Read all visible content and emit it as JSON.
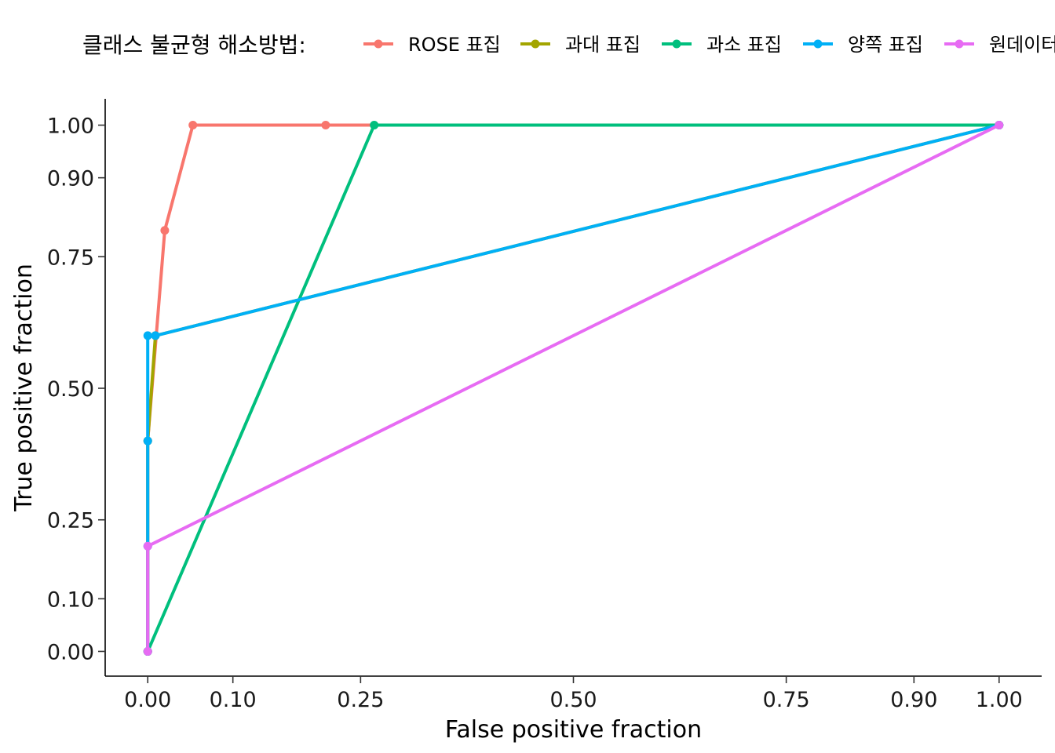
{
  "chart_data": {
    "type": "line",
    "title": "",
    "xlabel": "False positive fraction",
    "ylabel": "True positive fraction",
    "xlim": [
      -0.05,
      1.05
    ],
    "ylim": [
      -0.047,
      1.05
    ],
    "xticks": [
      0.0,
      0.1,
      0.25,
      0.5,
      0.75,
      0.9,
      1.0
    ],
    "yticks": [
      0.0,
      0.1,
      0.25,
      0.5,
      0.75,
      0.9,
      1.0
    ],
    "xtick_labels": [
      "0.00",
      "0.10",
      "0.25",
      "0.50",
      "0.75",
      "0.90",
      "1.00"
    ],
    "ytick_labels": [
      "0.00",
      "0.10",
      "0.25",
      "0.50",
      "0.75",
      "0.90",
      "1.00"
    ],
    "grid": false,
    "legend": {
      "title": "클래스 불균형 해소방법:",
      "placement": "top"
    },
    "series": [
      {
        "name": "ROSE 표집",
        "color": "#F8766D",
        "x": [
          0.0,
          0.0,
          0.02,
          0.053,
          0.209,
          1.0
        ],
        "y": [
          0.0,
          0.4,
          0.8,
          1.0,
          1.0,
          1.0
        ]
      },
      {
        "name": "과대 표집",
        "color": "#A3A500",
        "x": [
          0.0,
          0.0,
          0.009,
          1.0
        ],
        "y": [
          0.0,
          0.4,
          0.6,
          1.0
        ]
      },
      {
        "name": "과소 표집",
        "color": "#00BF7D",
        "x": [
          0.0,
          0.266,
          1.0
        ],
        "y": [
          0.0,
          1.0,
          1.0
        ]
      },
      {
        "name": "양쪽 표집",
        "color": "#00B0F6",
        "x": [
          0.0,
          0.0,
          0.0,
          0.0,
          0.009,
          1.0
        ],
        "y": [
          0.0,
          0.2,
          0.4,
          0.6,
          0.6,
          1.0
        ]
      },
      {
        "name": "원데이터",
        "color": "#E76BF3",
        "x": [
          0.0,
          0.0,
          1.0
        ],
        "y": [
          0.0,
          0.2,
          1.0
        ]
      }
    ]
  }
}
